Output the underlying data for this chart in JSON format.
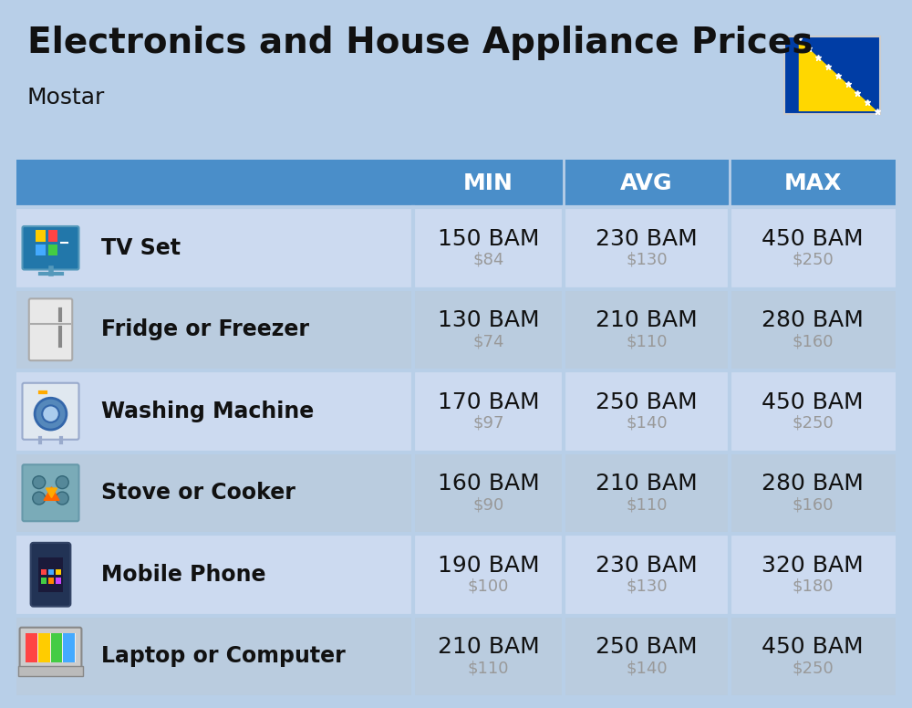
{
  "title": "Electronics and House Appliance Prices",
  "subtitle": "Mostar",
  "bg_color": "#b8cfe8",
  "header_bg": "#4a8ec9",
  "header_text_color": "#ffffff",
  "row_bg": "#ccdaf0",
  "row_bg_alt": "#baccdf",
  "item_name_color": "#111111",
  "price_bam_color": "#111111",
  "price_usd_color": "#999999",
  "divider_color": "#b8cfe8",
  "headers": [
    "MIN",
    "AVG",
    "MAX"
  ],
  "rows": [
    {
      "name": "TV Set",
      "icon": "tv",
      "min_bam": "150 BAM",
      "min_usd": "$84",
      "avg_bam": "230 BAM",
      "avg_usd": "$130",
      "max_bam": "450 BAM",
      "max_usd": "$250"
    },
    {
      "name": "Fridge or Freezer",
      "icon": "fridge",
      "min_bam": "130 BAM",
      "min_usd": "$74",
      "avg_bam": "210 BAM",
      "avg_usd": "$110",
      "max_bam": "280 BAM",
      "max_usd": "$160"
    },
    {
      "name": "Washing Machine",
      "icon": "washing",
      "min_bam": "170 BAM",
      "min_usd": "$97",
      "avg_bam": "250 BAM",
      "avg_usd": "$140",
      "max_bam": "450 BAM",
      "max_usd": "$250"
    },
    {
      "name": "Stove or Cooker",
      "icon": "stove",
      "min_bam": "160 BAM",
      "min_usd": "$90",
      "avg_bam": "210 BAM",
      "avg_usd": "$110",
      "max_bam": "280 BAM",
      "max_usd": "$160"
    },
    {
      "name": "Mobile Phone",
      "icon": "phone",
      "min_bam": "190 BAM",
      "min_usd": "$100",
      "avg_bam": "230 BAM",
      "avg_usd": "$130",
      "max_bam": "320 BAM",
      "max_usd": "$180"
    },
    {
      "name": "Laptop or Computer",
      "icon": "laptop",
      "min_bam": "210 BAM",
      "min_usd": "$110",
      "avg_bam": "250 BAM",
      "avg_usd": "$140",
      "max_bam": "450 BAM",
      "max_usd": "$250"
    }
  ],
  "title_fontsize": 28,
  "subtitle_fontsize": 18,
  "header_fontsize": 18,
  "item_name_fontsize": 17,
  "price_bam_fontsize": 18,
  "price_usd_fontsize": 13
}
